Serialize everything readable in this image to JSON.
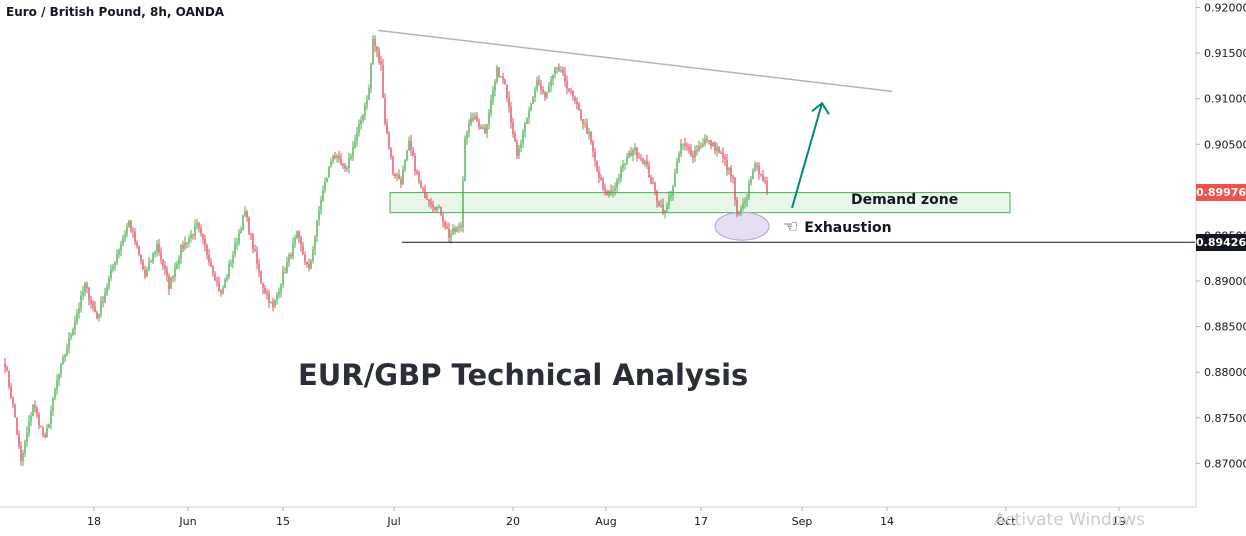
{
  "header": {
    "title": "Euro / British Pound, 8h, OANDA"
  },
  "overlay": {
    "headline": "EUR/GBP Technical Analysis",
    "watermark": "Activate Windows"
  },
  "colors": {
    "up": "#26a69a",
    "down": "#ef5350",
    "up_candle": "#4caf50",
    "down_candle": "#e0505f",
    "zone_fill": "#e8f5e9",
    "zone_border": "#4caf50",
    "resistance_line": "#b2b5be",
    "support_line": "#131722",
    "arrow": "#00897b",
    "ellipse_fill": "#d1c4e9",
    "ellipse_border": "#b39ddb",
    "last_price_tag": "#ef5350",
    "level_tag": "#131722"
  },
  "chart_data": {
    "type": "candlestick",
    "title": "Euro / British Pound, 8h, OANDA",
    "y_axis": {
      "position": "right",
      "ticks": [
        "0.87000",
        "0.87500",
        "0.88000",
        "0.88500",
        "0.89000",
        "0.89500",
        "0.90000",
        "0.90500",
        "0.91000",
        "0.91500",
        "0.92000"
      ],
      "range": [
        0.8685,
        0.9205
      ]
    },
    "x_axis": {
      "ticks": [
        "18",
        "Jun",
        "15",
        "Jul",
        "20",
        "Aug",
        "17",
        "Sep",
        "14",
        "Oct",
        "19"
      ]
    },
    "price_tags": [
      {
        "label": "0.89976",
        "value": 0.89976,
        "kind": "last"
      },
      {
        "label": "0.89426",
        "value": 0.89426,
        "kind": "level"
      }
    ],
    "annotations": {
      "demand_zone": {
        "label": "Demand zone",
        "low": 0.8975,
        "high": 0.8997
      },
      "exhaustion": {
        "label": "Exhaustion",
        "icon": "pointing-hand-icon"
      },
      "support_level": 0.89426,
      "descending_resistance": {
        "from": "Jul",
        "start": 0.9175,
        "end": 0.9108
      },
      "projection_arrow": {
        "direction": "up",
        "target": 0.9095
      }
    },
    "keypoints": [
      [
        0,
        0.881
      ],
      [
        5,
        0.875
      ],
      [
        8,
        0.87
      ],
      [
        14,
        0.8765
      ],
      [
        20,
        0.8725
      ],
      [
        26,
        0.879
      ],
      [
        32,
        0.8835
      ],
      [
        40,
        0.8895
      ],
      [
        46,
        0.886
      ],
      [
        56,
        0.893
      ],
      [
        62,
        0.8965
      ],
      [
        70,
        0.8905
      ],
      [
        76,
        0.894
      ],
      [
        82,
        0.8895
      ],
      [
        88,
        0.8935
      ],
      [
        96,
        0.896
      ],
      [
        102,
        0.8925
      ],
      [
        108,
        0.8885
      ],
      [
        114,
        0.893
      ],
      [
        120,
        0.8975
      ],
      [
        128,
        0.89
      ],
      [
        134,
        0.887
      ],
      [
        138,
        0.89
      ],
      [
        146,
        0.895
      ],
      [
        152,
        0.891
      ],
      [
        158,
        0.899
      ],
      [
        164,
        0.904
      ],
      [
        170,
        0.902
      ],
      [
        176,
        0.906
      ],
      [
        182,
        0.911
      ],
      [
        184,
        0.9165
      ],
      [
        188,
        0.9135
      ],
      [
        190,
        0.9075
      ],
      [
        194,
        0.902
      ],
      [
        198,
        0.901
      ],
      [
        202,
        0.905
      ],
      [
        208,
        0.9
      ],
      [
        214,
        0.8985
      ],
      [
        218,
        0.8975
      ],
      [
        222,
        0.895
      ],
      [
        228,
        0.896
      ],
      [
        230,
        0.906
      ],
      [
        234,
        0.908
      ],
      [
        240,
        0.9065
      ],
      [
        246,
        0.913
      ],
      [
        250,
        0.912
      ],
      [
        256,
        0.9035
      ],
      [
        262,
        0.9085
      ],
      [
        266,
        0.912
      ],
      [
        270,
        0.91
      ],
      [
        276,
        0.9135
      ],
      [
        280,
        0.912
      ],
      [
        286,
        0.909
      ],
      [
        292,
        0.906
      ],
      [
        296,
        0.902
      ],
      [
        300,
        0.8995
      ],
      [
        304,
        0.9
      ],
      [
        310,
        0.903
      ],
      [
        314,
        0.9045
      ],
      [
        320,
        0.903
      ],
      [
        326,
        0.899
      ],
      [
        330,
        0.8975
      ],
      [
        334,
        0.9005
      ],
      [
        338,
        0.905
      ],
      [
        344,
        0.904
      ],
      [
        350,
        0.9055
      ],
      [
        356,
        0.9045
      ],
      [
        360,
        0.903
      ],
      [
        364,
        0.901
      ],
      [
        366,
        0.897
      ],
      [
        370,
        0.8985
      ],
      [
        374,
        0.9025
      ],
      [
        378,
        0.902
      ],
      [
        381,
        0.8998
      ]
    ]
  }
}
